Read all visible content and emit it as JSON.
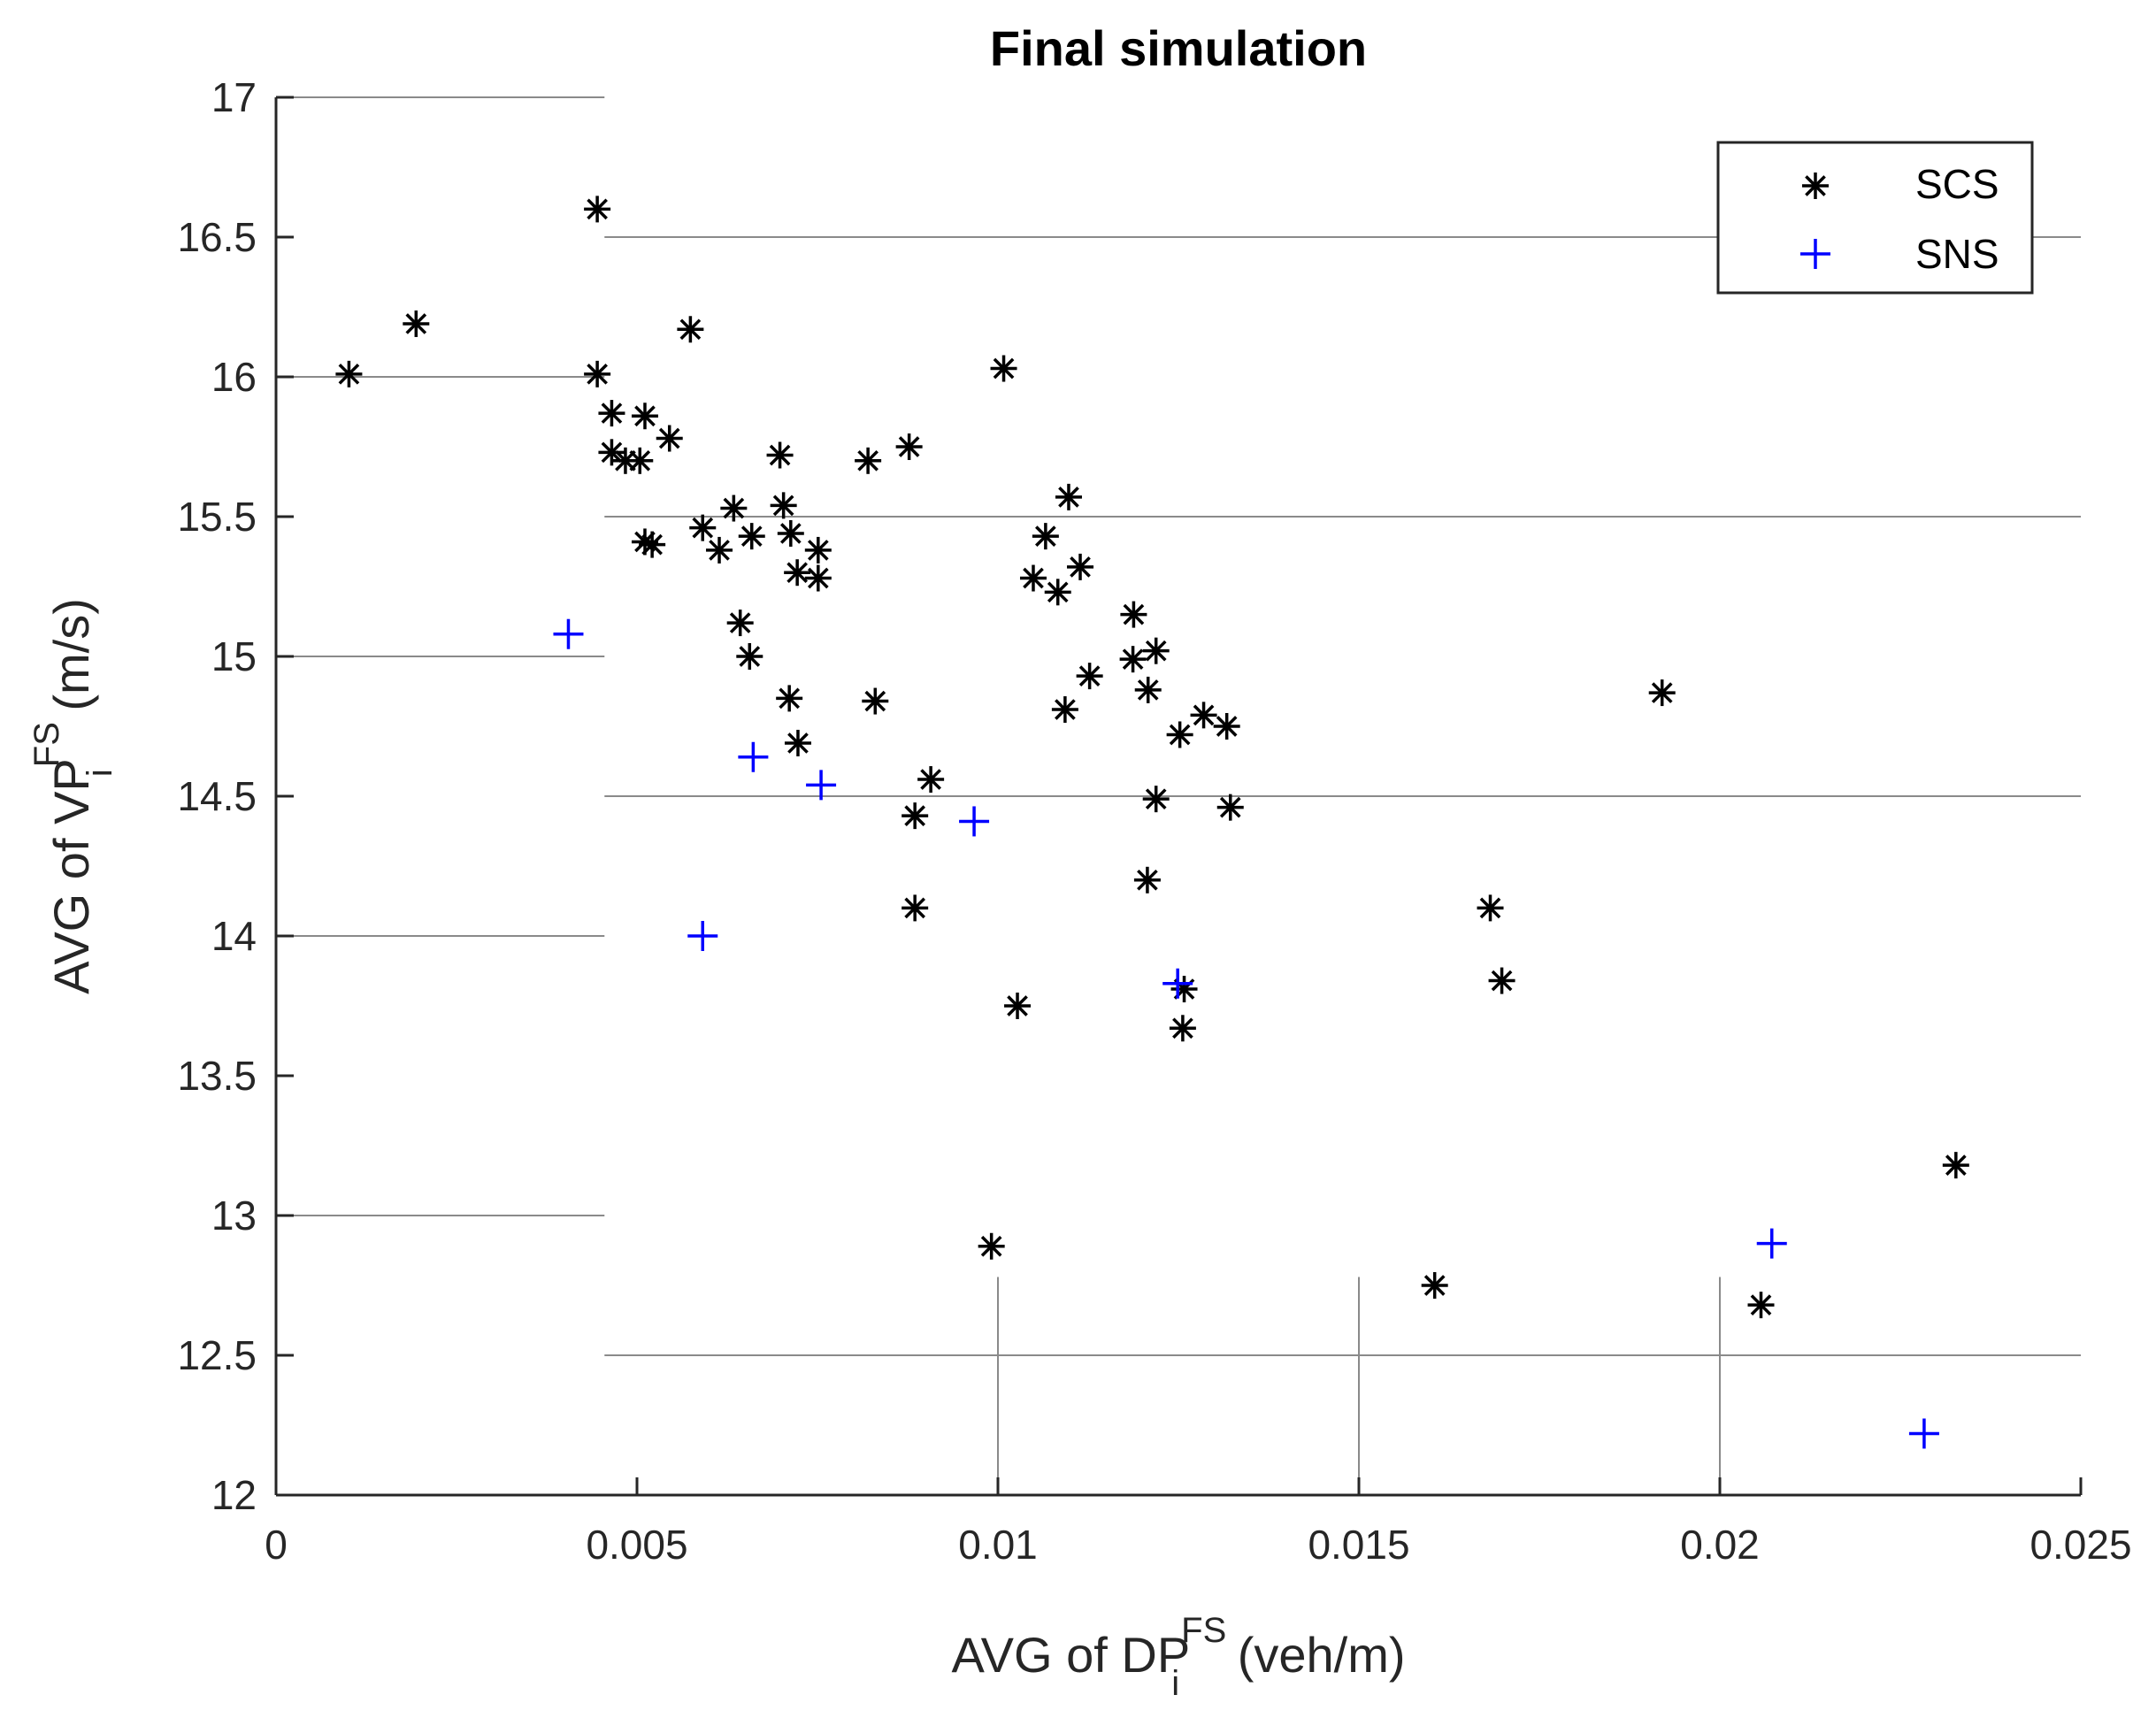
{
  "chart_data": {
    "type": "scatter",
    "title": "Final simulation",
    "xlabel": {
      "prefix": "AVG of DP",
      "subscript": "i",
      "superscript": "FS",
      "suffix": " (veh/m)"
    },
    "ylabel": {
      "prefix": "AVG of VP",
      "subscript": "i",
      "superscript": "FS",
      "suffix": " (m/s)"
    },
    "xlim": [
      0,
      0.025
    ],
    "ylim": [
      12,
      17
    ],
    "xticks": [
      {
        "value": 0,
        "label": "0"
      },
      {
        "value": 0.005,
        "label": "0.005"
      },
      {
        "value": 0.01,
        "label": "0.01"
      },
      {
        "value": 0.015,
        "label": "0.015"
      },
      {
        "value": 0.02,
        "label": "0.02"
      },
      {
        "value": 0.025,
        "label": "0.025"
      }
    ],
    "yticks": [
      {
        "value": 12,
        "label": "12"
      },
      {
        "value": 12.5,
        "label": "12.5"
      },
      {
        "value": 13,
        "label": "13"
      },
      {
        "value": 13.5,
        "label": "13.5"
      },
      {
        "value": 14,
        "label": "14"
      },
      {
        "value": 14.5,
        "label": "14.5"
      },
      {
        "value": 15,
        "label": "15"
      },
      {
        "value": 15.5,
        "label": "15.5"
      },
      {
        "value": 16,
        "label": "16"
      },
      {
        "value": 16.5,
        "label": "16.5"
      },
      {
        "value": 17,
        "label": "17"
      }
    ],
    "grid": "partial",
    "legend_position": "top-right",
    "series": [
      {
        "name": "SCS",
        "marker": "asterisk",
        "color": "#000000",
        "points": [
          [
            0.00101,
            16.01
          ],
          [
            0.00194,
            16.19
          ],
          [
            0.00445,
            16.6
          ],
          [
            0.00445,
            16.01
          ],
          [
            0.00465,
            15.87
          ],
          [
            0.00465,
            15.73
          ],
          [
            0.00484,
            15.7
          ],
          [
            0.00511,
            15.86
          ],
          [
            0.00504,
            15.7
          ],
          [
            0.00545,
            15.78
          ],
          [
            0.00511,
            15.41
          ],
          [
            0.00521,
            15.4
          ],
          [
            0.00574,
            16.17
          ],
          [
            0.00591,
            15.46
          ],
          [
            0.00614,
            15.38
          ],
          [
            0.00634,
            15.53
          ],
          [
            0.00659,
            15.43
          ],
          [
            0.00643,
            15.12
          ],
          [
            0.00656,
            15.0
          ],
          [
            0.00698,
            15.72
          ],
          [
            0.00703,
            15.54
          ],
          [
            0.00713,
            15.44
          ],
          [
            0.00722,
            15.3
          ],
          [
            0.00751,
            15.38
          ],
          [
            0.00751,
            15.28
          ],
          [
            0.00711,
            14.85
          ],
          [
            0.00723,
            14.69
          ],
          [
            0.0082,
            15.7
          ],
          [
            0.0083,
            14.84
          ],
          [
            0.00877,
            15.75
          ],
          [
            0.00885,
            14.43
          ],
          [
            0.00885,
            14.1
          ],
          [
            0.00907,
            14.56
          ],
          [
            0.01008,
            16.03
          ],
          [
            0.00991,
            12.89
          ],
          [
            0.01027,
            13.75
          ],
          [
            0.01049,
            15.28
          ],
          [
            0.01066,
            15.43
          ],
          [
            0.01083,
            15.23
          ],
          [
            0.01098,
            15.57
          ],
          [
            0.01093,
            14.81
          ],
          [
            0.01114,
            15.32
          ],
          [
            0.01127,
            14.93
          ],
          [
            0.01188,
            15.15
          ],
          [
            0.01187,
            14.99
          ],
          [
            0.01208,
            14.88
          ],
          [
            0.01219,
            15.02
          ],
          [
            0.01219,
            14.49
          ],
          [
            0.01207,
            14.2
          ],
          [
            0.01252,
            14.72
          ],
          [
            0.01285,
            14.79
          ],
          [
            0.01317,
            14.75
          ],
          [
            0.01322,
            14.46
          ],
          [
            0.01258,
            13.81
          ],
          [
            0.01256,
            13.67
          ],
          [
            0.01605,
            12.75
          ],
          [
            0.01682,
            14.1
          ],
          [
            0.01698,
            13.84
          ],
          [
            0.0192,
            14.87
          ],
          [
            0.02057,
            12.68
          ],
          [
            0.02327,
            13.18
          ]
        ]
      },
      {
        "name": "SNS",
        "marker": "plus",
        "color": "#0000ff",
        "points": [
          [
            0.00405,
            15.08
          ],
          [
            0.00591,
            14.0
          ],
          [
            0.00661,
            14.64
          ],
          [
            0.00755,
            14.54
          ],
          [
            0.00967,
            14.41
          ],
          [
            0.01249,
            13.83
          ],
          [
            0.02072,
            12.9
          ],
          [
            0.02283,
            12.22
          ]
        ]
      }
    ]
  }
}
